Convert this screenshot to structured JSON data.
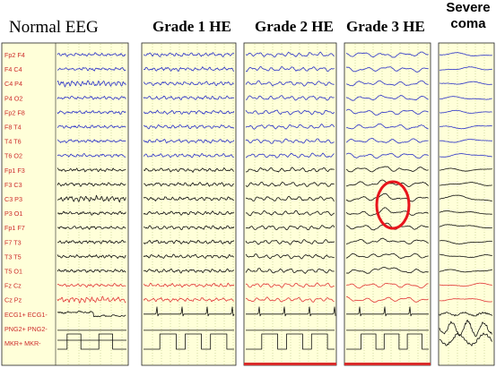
{
  "titles": {
    "normal": "Normal EEG",
    "grade1": "Grade 1 HE",
    "grade2": "Grade 2 HE",
    "grade3": "Grade 3 HE",
    "severe_line1": "Severe",
    "severe_line2": "coma"
  },
  "channels": [
    {
      "label": "Fp2 F4",
      "group": "blue"
    },
    {
      "label": "F4 C4",
      "group": "blue"
    },
    {
      "label": "C4 P4",
      "group": "blue"
    },
    {
      "label": "P4 O2",
      "group": "blue"
    },
    {
      "label": "Fp2 F8",
      "group": "blue"
    },
    {
      "label": "F8 T4",
      "group": "blue"
    },
    {
      "label": "T4 T6",
      "group": "blue"
    },
    {
      "label": "T6 O2",
      "group": "blue"
    },
    {
      "label": "Fp1 F3",
      "group": "black"
    },
    {
      "label": "F3 C3",
      "group": "black"
    },
    {
      "label": "C3 P3",
      "group": "black"
    },
    {
      "label": "P3 O1",
      "group": "black"
    },
    {
      "label": "Fp1 F7",
      "group": "black"
    },
    {
      "label": "F7 T3",
      "group": "black"
    },
    {
      "label": "T3 T5",
      "group": "black"
    },
    {
      "label": "T5 O1",
      "group": "black"
    },
    {
      "label": "Fz Cz",
      "group": "red"
    },
    {
      "label": "Cz Pz",
      "group": "red"
    },
    {
      "label": "ECG1+ ECG1-",
      "group": "ecg"
    },
    {
      "label": "PNG2+ PNG2-",
      "group": "png"
    },
    {
      "label": "MKR+ MKR-",
      "group": "mkr"
    }
  ],
  "colors": {
    "panel_bg": "#ffffd9",
    "label_color": "#cc2a2a",
    "blue_trace": "#2d34c8",
    "black_trace": "#111111",
    "red_trace": "#e23a3a",
    "grid": "#a8b86e",
    "highlight_ellipse": "#e8141c",
    "marker_bar": "#d92b2b"
  },
  "icons": {
    "highlight": "red-ellipse-annotation-icon"
  }
}
